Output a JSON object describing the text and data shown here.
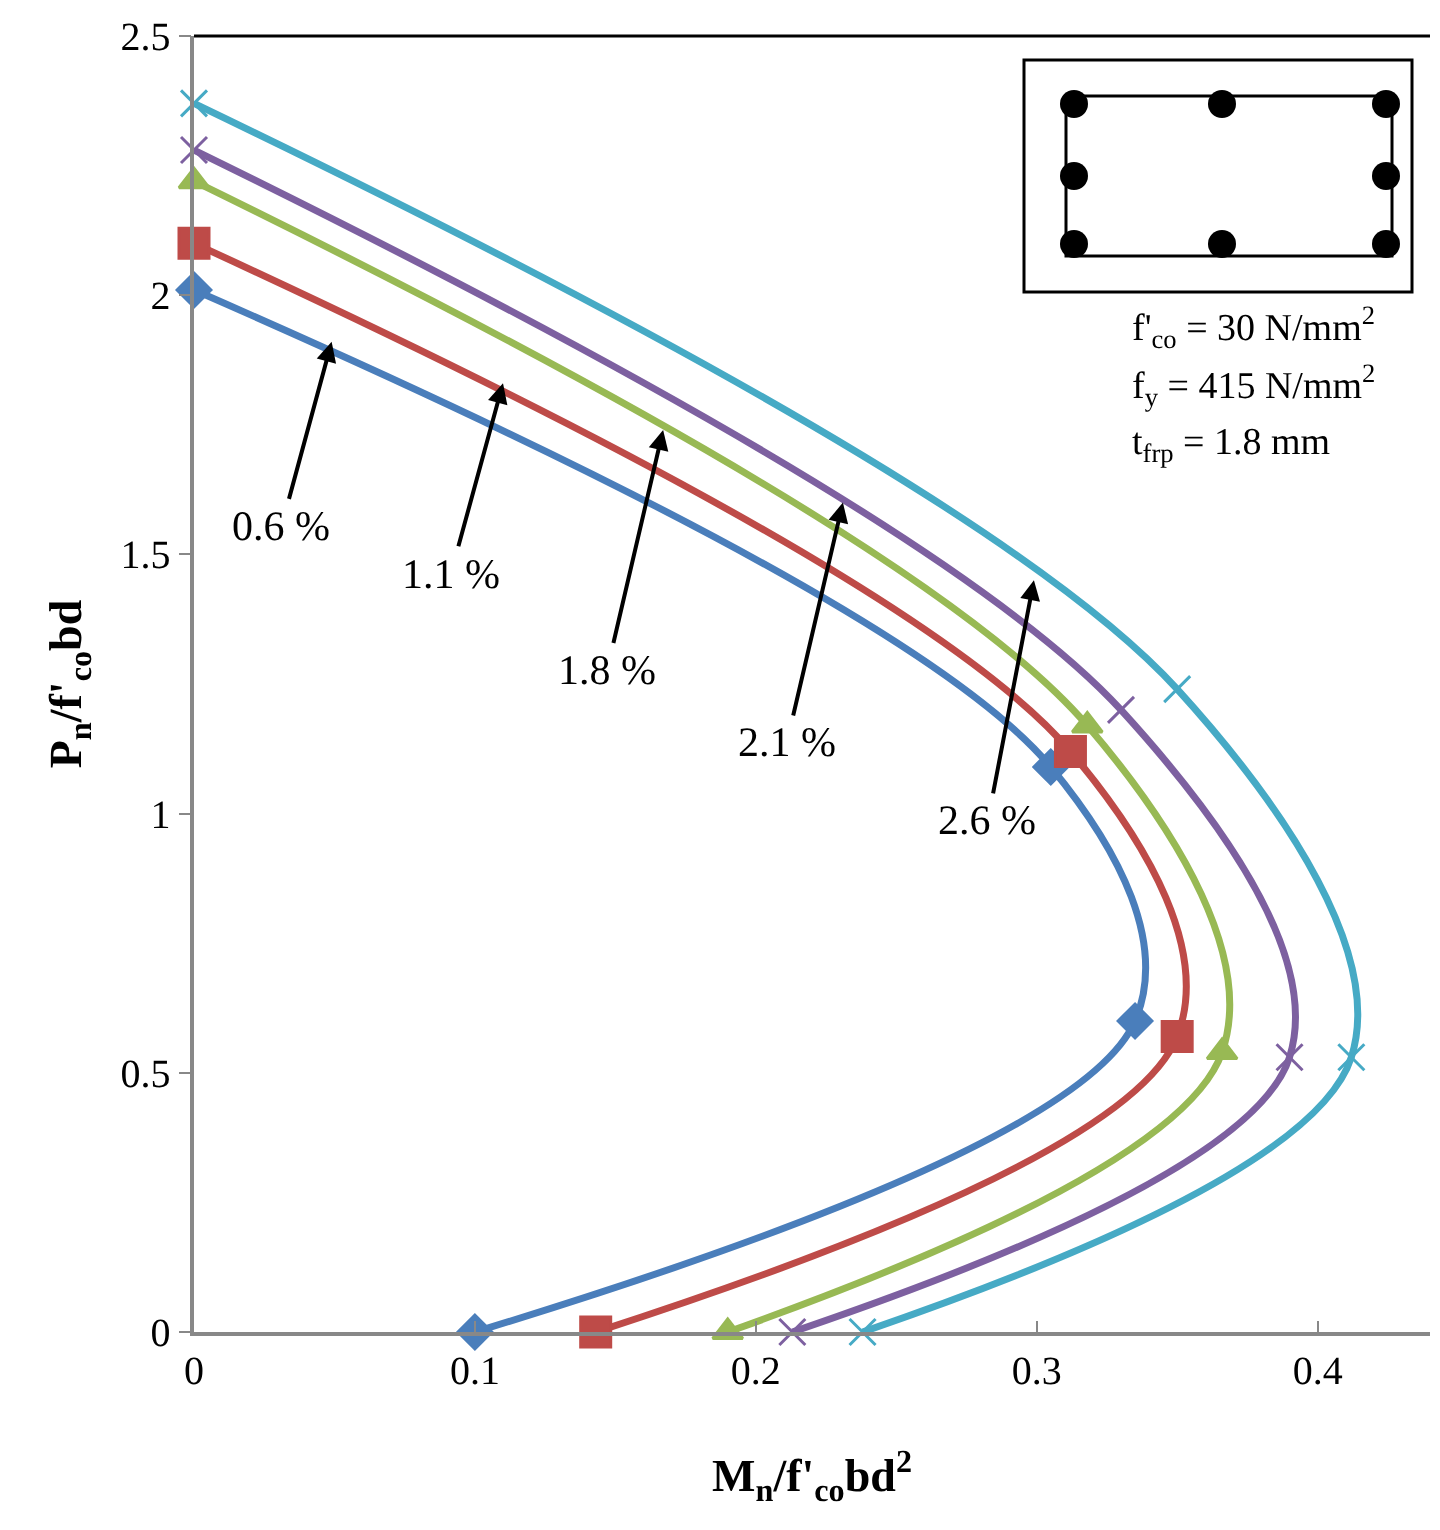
{
  "chart_data": {
    "type": "line",
    "xlabel": "M$_{n}$/f'$_{co}$bd$^{2}$",
    "ylabel": "P$_{n}$/f'$_{co}$bd",
    "xlim": [
      0,
      0.44
    ],
    "xticks": [
      0,
      0.1,
      0.2,
      0.3,
      0.4
    ],
    "ylim": [
      0,
      2.5
    ],
    "yticks": [
      0,
      0.5,
      1,
      1.5,
      2,
      2.5
    ],
    "grid": false,
    "line_style": "solid",
    "series": [
      {
        "color": "#4a7ebb",
        "marker": "diamond",
        "x": [
          0,
          0.305,
          0.335,
          0.1
        ],
        "values": [
          2.01,
          1.09,
          0.6,
          0
        ]
      },
      {
        "color": "#be4b48",
        "marker": "square",
        "x": [
          0,
          0.312,
          0.35,
          0.143
        ],
        "values": [
          2.1,
          1.12,
          0.57,
          0
        ]
      },
      {
        "color": "#98b954",
        "marker": "triangle",
        "x": [
          0,
          0.318,
          0.366,
          0.19
        ],
        "values": [
          2.22,
          1.17,
          0.54,
          0
        ]
      },
      {
        "color": "#7d60a0",
        "marker": "cross",
        "x": [
          0,
          0.33,
          0.39,
          0.213
        ],
        "values": [
          2.28,
          1.2,
          0.53,
          0
        ]
      },
      {
        "color": "#46aac5",
        "marker": "cross",
        "x": [
          0,
          0.35,
          0.412,
          0.238
        ],
        "values": [
          2.37,
          1.24,
          0.53,
          0
        ]
      }
    ],
    "annotations": [
      {
        "text": "0.6 %",
        "x": 0.049,
        "y": 1.91
      },
      {
        "text": "1.1 %",
        "x": 0.11,
        "y": 1.83
      },
      {
        "text": "1.8 %",
        "x": 0.167,
        "y": 1.74
      },
      {
        "text": "2.1 %",
        "x": 0.231,
        "y": 1.6
      },
      {
        "text": "2.6 %",
        "x": 0.299,
        "y": 1.45
      },
      "f'$_{co}$ = 30 N/mm$^{2}$",
      "f$_{y}$ = 415 N/mm$^{2}$",
      "t$_{frp}$ = 1.8 mm"
    ]
  }
}
